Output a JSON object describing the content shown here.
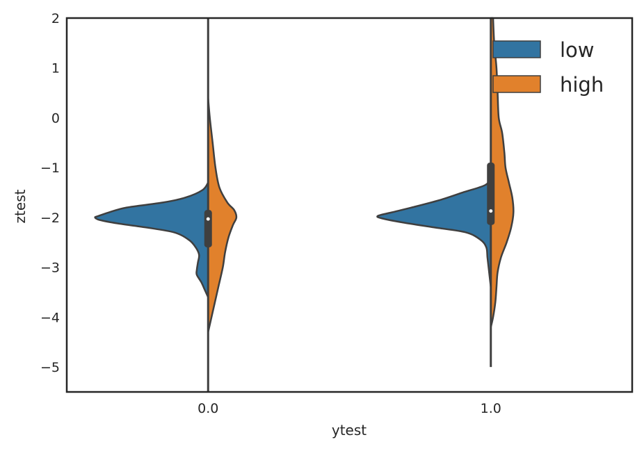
{
  "chart_data": {
    "type": "violin",
    "xlabel": "ytest",
    "ylabel": "ztest",
    "categories": [
      "0.0",
      "1.0"
    ],
    "ylim": [
      -5.5,
      2
    ],
    "yticks": [
      2,
      1,
      0,
      -1,
      -2,
      -3,
      -4,
      -5
    ],
    "ytick_labels": [
      "2",
      "1",
      "0",
      "−1",
      "−2",
      "−3",
      "−4",
      "−5"
    ],
    "split": true,
    "grid": false,
    "legend": {
      "placement": "top-right"
    },
    "series": [
      {
        "name": "low",
        "color": "#3274a1"
      },
      {
        "name": "high",
        "color": "#e1812c"
      }
    ],
    "violins": [
      {
        "category": "0.0",
        "low": {
          "range": [
            -3.6,
            -1.3
          ],
          "density": [
            [
              -1.3,
              0.0
            ],
            [
              -1.45,
              0.05
            ],
            [
              -1.6,
              0.2
            ],
            [
              -1.7,
              0.4
            ],
            [
              -1.8,
              0.72
            ],
            [
              -1.9,
              0.88
            ],
            [
              -1.97,
              0.97
            ],
            [
              -2.0,
              1.0
            ],
            [
              -2.05,
              0.96
            ],
            [
              -2.12,
              0.8
            ],
            [
              -2.2,
              0.55
            ],
            [
              -2.3,
              0.3
            ],
            [
              -2.45,
              0.17
            ],
            [
              -2.6,
              0.11
            ],
            [
              -2.75,
              0.08
            ],
            [
              -2.9,
              0.09
            ],
            [
              -3.05,
              0.1
            ],
            [
              -3.15,
              0.1
            ],
            [
              -3.3,
              0.06
            ],
            [
              -3.45,
              0.03
            ],
            [
              -3.6,
              0.0
            ]
          ]
        },
        "high": {
          "range": [
            -4.3,
            0.4
          ],
          "density": [
            [
              0.4,
              0.0
            ],
            [
              0.0,
              0.015
            ],
            [
              -0.5,
              0.04
            ],
            [
              -1.0,
              0.065
            ],
            [
              -1.4,
              0.1
            ],
            [
              -1.7,
              0.17
            ],
            [
              -1.85,
              0.23
            ],
            [
              -2.0,
              0.25
            ],
            [
              -2.15,
              0.22
            ],
            [
              -2.4,
              0.18
            ],
            [
              -2.7,
              0.15
            ],
            [
              -3.0,
              0.13
            ],
            [
              -3.4,
              0.09
            ],
            [
              -3.8,
              0.05
            ],
            [
              -4.1,
              0.02
            ],
            [
              -4.3,
              0.0
            ]
          ]
        },
        "box": {
          "q1": -2.6,
          "median": -2.03,
          "q3": -1.85,
          "whisker_low": -5.5,
          "whisker_high": 2.0
        }
      },
      {
        "category": "1.0",
        "low": {
          "range": [
            -3.4,
            -1.2
          ],
          "density": [
            [
              -1.2,
              0.0
            ],
            [
              -1.35,
              0.05
            ],
            [
              -1.5,
              0.25
            ],
            [
              -1.65,
              0.45
            ],
            [
              -1.8,
              0.7
            ],
            [
              -1.9,
              0.88
            ],
            [
              -1.97,
              1.0
            ],
            [
              -2.02,
              0.96
            ],
            [
              -2.1,
              0.78
            ],
            [
              -2.2,
              0.5
            ],
            [
              -2.3,
              0.22
            ],
            [
              -2.45,
              0.09
            ],
            [
              -2.6,
              0.04
            ],
            [
              -2.8,
              0.03
            ],
            [
              -3.0,
              0.02
            ],
            [
              -3.2,
              0.01
            ],
            [
              -3.4,
              0.0
            ]
          ]
        },
        "high": {
          "range": [
            -4.2,
            2.0
          ],
          "density": [
            [
              2.0,
              0.02
            ],
            [
              1.5,
              0.03
            ],
            [
              1.0,
              0.05
            ],
            [
              0.5,
              0.06
            ],
            [
              0.0,
              0.07
            ],
            [
              -0.3,
              0.1
            ],
            [
              -0.7,
              0.12
            ],
            [
              -1.0,
              0.13
            ],
            [
              -1.3,
              0.16
            ],
            [
              -1.6,
              0.19
            ],
            [
              -1.9,
              0.2
            ],
            [
              -2.2,
              0.18
            ],
            [
              -2.5,
              0.14
            ],
            [
              -2.8,
              0.09
            ],
            [
              -3.1,
              0.06
            ],
            [
              -3.4,
              0.05
            ],
            [
              -3.7,
              0.04
            ],
            [
              -4.0,
              0.02
            ],
            [
              -4.2,
              0.0
            ]
          ]
        },
        "box": {
          "q1": -2.15,
          "median": -1.87,
          "q3": -0.9,
          "whisker_low": -5.0,
          "whisker_high": 2.0
        }
      }
    ]
  }
}
